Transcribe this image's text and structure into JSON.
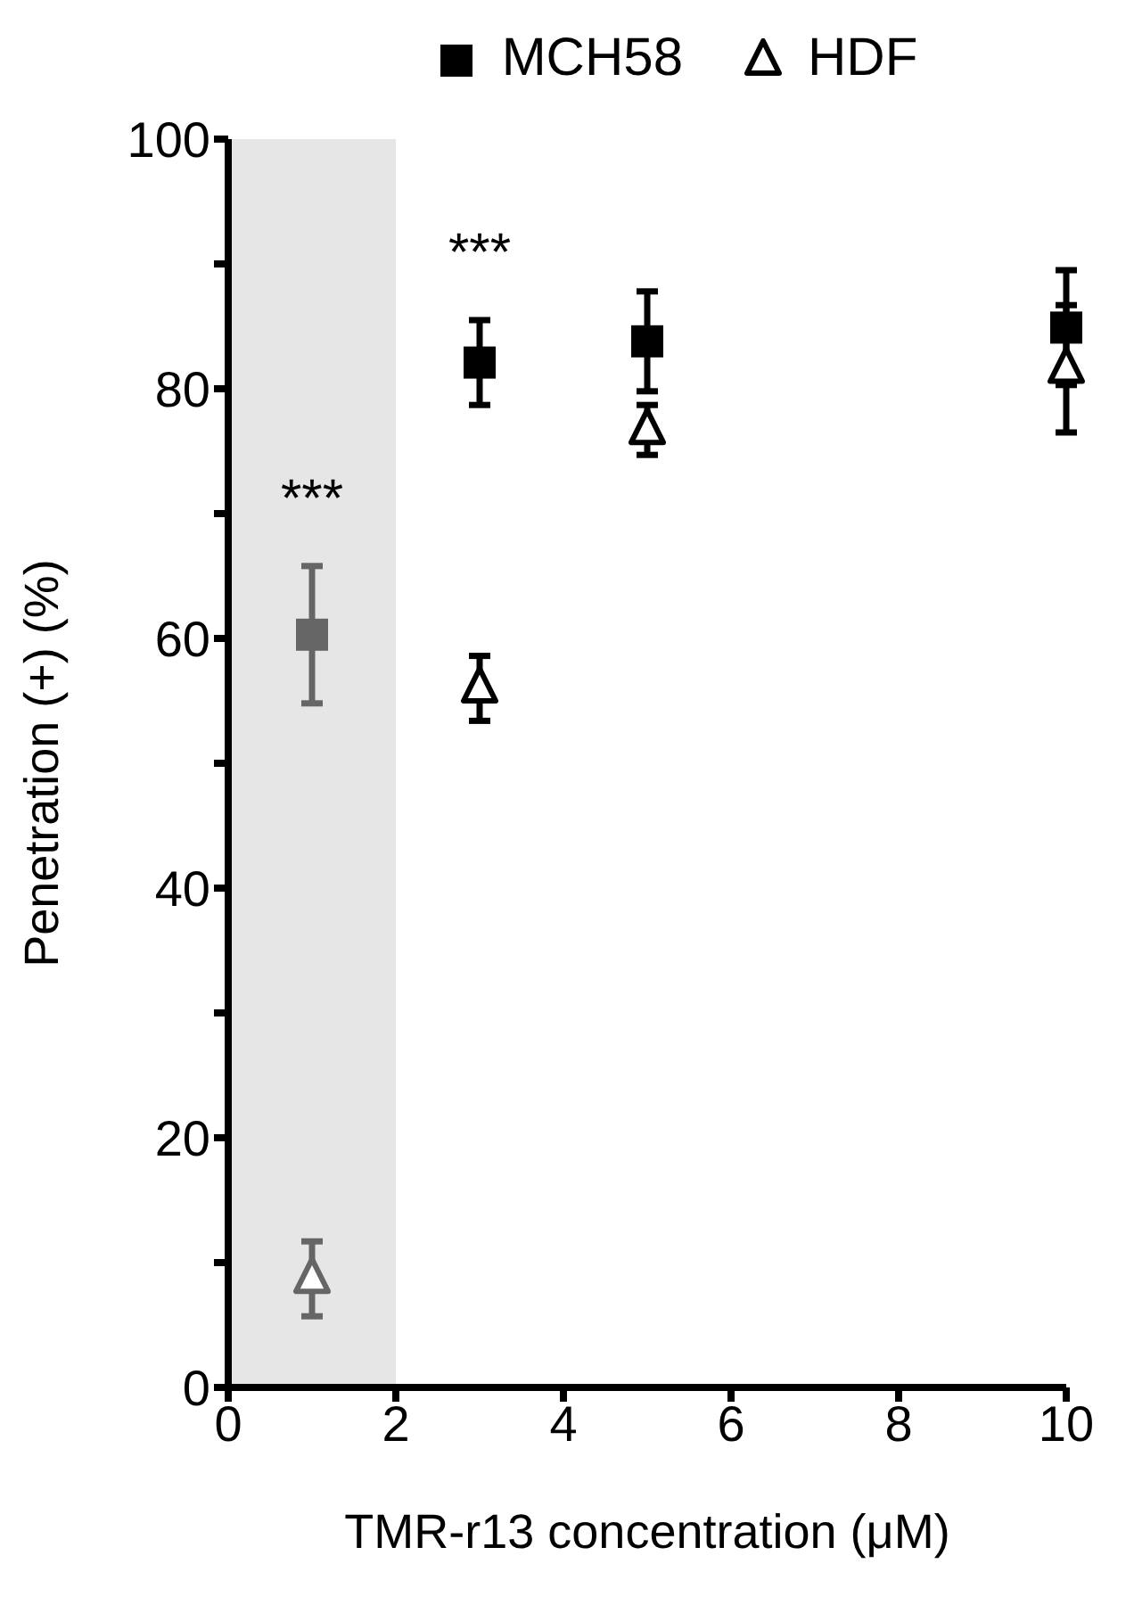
{
  "chart_data": {
    "type": "scatter",
    "xlabel": "TMR-r13 concentration (μM)",
    "ylabel": "Penetration (+)  (%)",
    "x": [
      1,
      3,
      5,
      10
    ],
    "series": [
      {
        "name": "MCH58",
        "marker": "square",
        "color": "#000000",
        "colors": [
          "#666666",
          "#000000",
          "#000000",
          "#000000"
        ],
        "values": [
          60.3,
          82.1,
          83.8,
          84.9
        ],
        "errors": [
          5.5,
          3.4,
          4,
          4.6
        ]
      },
      {
        "name": "HDF",
        "marker": "triangle",
        "color": "#000000",
        "colors": [
          "#666666",
          "#000000",
          "#000000",
          "#000000"
        ],
        "values": [
          8.7,
          56,
          76.7,
          81.6
        ],
        "errors": [
          3,
          2.6,
          2,
          5.1
        ]
      }
    ],
    "xlim": [
      0,
      10
    ],
    "xticks": [
      0,
      2,
      4,
      6,
      8,
      10
    ],
    "ylim": [
      0,
      100
    ],
    "yticks": [
      0,
      {
        "value": 10,
        "label": null
      },
      20,
      {
        "value": 30,
        "label": null
      },
      40,
      {
        "value": 50,
        "label": null
      },
      60,
      {
        "value": 70,
        "label": null
      },
      80,
      {
        "value": 90,
        "label": null
      },
      100
    ],
    "bands": [
      {
        "axis": "x",
        "from": 0,
        "to": 2,
        "color": "#e6e6e6"
      }
    ],
    "annotations": [
      "***",
      "***"
    ],
    "legend": "top",
    "grid": false
  }
}
